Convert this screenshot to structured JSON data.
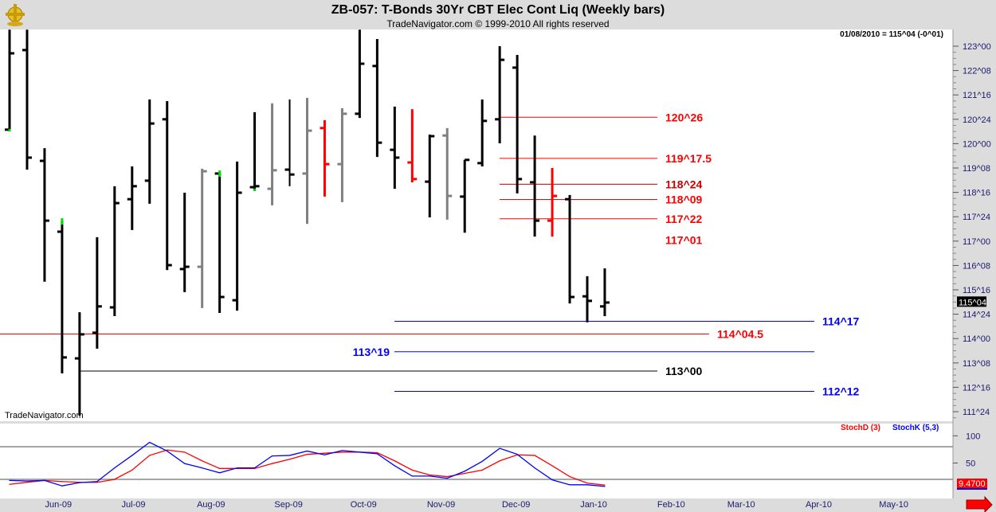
{
  "header": {
    "title": "ZB-057:  T-Bonds 30Yr CBT Elec Cont Liq  (Weekly bars)",
    "subtitle": "TradeNavigator.com © 1999-2010 All rights reserved",
    "quote": "01/08/2010 = 115^04 (-0^01)",
    "watermark": "TradeNavigator.com"
  },
  "colors": {
    "up": "#000000",
    "neutral": "#808080",
    "signal": "#ff0000",
    "mark": "#00dd00",
    "blue_level": "#0000ff",
    "red_level": "#ff0000",
    "stochD": "#ff0000",
    "stochK": "#0000ff"
  },
  "chart_data": [
    {
      "type": "ohlc",
      "title": "ZB-057:  T-Bonds 30Yr CBT Elec Cont Liq  (Weekly bars)",
      "y_axis": {
        "position": "right",
        "ylim": [
          111.5,
          123.5
        ],
        "tick_labels": [
          "123^00",
          "122^08",
          "121^16",
          "120^24",
          "120^00",
          "119^08",
          "118^16",
          "117^24",
          "117^00",
          "116^08",
          "115^16",
          "114^24",
          "114^00",
          "113^08",
          "112^16",
          "111^24"
        ],
        "tick_values": [
          123.0,
          122.25,
          121.5,
          120.75,
          120.0,
          119.25,
          118.5,
          117.75,
          117.0,
          116.25,
          115.5,
          114.75,
          114.0,
          113.25,
          112.5,
          111.75
        ],
        "last_price_label": "115^04",
        "last_price": 115.125
      },
      "bars": [
        {
          "date": "2009-05-15",
          "o": 120.43,
          "h": 123.51,
          "l": 120.38,
          "c": 122.78,
          "color": "up",
          "mark": "low"
        },
        {
          "date": "2009-05-22",
          "o": 122.88,
          "h": 123.51,
          "l": 119.2,
          "c": 119.57,
          "color": "up"
        },
        {
          "date": "2009-05-29",
          "o": 119.47,
          "h": 119.86,
          "l": 115.75,
          "c": 117.63,
          "color": "up"
        },
        {
          "date": "2009-06-05",
          "o": 117.29,
          "h": 117.63,
          "l": 112.93,
          "c": 113.42,
          "color": "up",
          "mark": "high"
        },
        {
          "date": "2009-06-12",
          "o": 113.39,
          "h": 114.81,
          "l": 111.63,
          "c": 114.13,
          "color": "up"
        },
        {
          "date": "2009-06-19",
          "o": 114.18,
          "h": 117.12,
          "l": 113.69,
          "c": 114.99,
          "color": "up"
        },
        {
          "date": "2009-06-26",
          "o": 114.96,
          "h": 118.69,
          "l": 114.69,
          "c": 118.17,
          "color": "up"
        },
        {
          "date": "2009-07-03",
          "o": 118.29,
          "h": 119.3,
          "l": 117.34,
          "c": 118.69,
          "color": "up"
        },
        {
          "date": "2009-07-10",
          "o": 118.86,
          "h": 121.36,
          "l": 118.15,
          "c": 120.62,
          "color": "up"
        },
        {
          "date": "2009-07-17",
          "o": 120.75,
          "h": 121.31,
          "l": 116.11,
          "c": 116.26,
          "color": "up"
        },
        {
          "date": "2009-07-24",
          "o": 116.14,
          "h": 118.49,
          "l": 115.43,
          "c": 116.21,
          "color": "up"
        },
        {
          "date": "2009-07-31",
          "o": 116.21,
          "h": 119.23,
          "l": 114.94,
          "c": 119.15,
          "color": "neutral"
        },
        {
          "date": "2009-08-07",
          "o": 119.08,
          "h": 119.1,
          "l": 114.79,
          "c": 115.28,
          "color": "up",
          "mark": "high"
        },
        {
          "date": "2009-08-14",
          "o": 115.18,
          "h": 119.45,
          "l": 114.86,
          "c": 118.49,
          "color": "up"
        },
        {
          "date": "2009-08-21",
          "o": 118.66,
          "h": 120.97,
          "l": 118.54,
          "c": 118.69,
          "color": "up",
          "mark": "low"
        },
        {
          "date": "2009-08-28",
          "o": 118.61,
          "h": 121.24,
          "l": 118.1,
          "c": 119.18,
          "color": "neutral"
        },
        {
          "date": "2009-09-04",
          "o": 119.2,
          "h": 121.36,
          "l": 118.69,
          "c": 119.05,
          "color": "up"
        },
        {
          "date": "2009-09-11",
          "o": 119.08,
          "h": 121.41,
          "l": 117.53,
          "c": 120.4,
          "color": "neutral"
        },
        {
          "date": "2009-09-18",
          "o": 120.48,
          "h": 120.72,
          "l": 118.37,
          "c": 119.37,
          "color": "signal"
        },
        {
          "date": "2009-09-25",
          "o": 119.37,
          "h": 121.09,
          "l": 118.2,
          "c": 120.92,
          "color": "neutral"
        },
        {
          "date": "2009-10-02",
          "o": 120.92,
          "h": 123.51,
          "l": 120.79,
          "c": 122.46,
          "color": "up"
        },
        {
          "date": "2009-10-09",
          "o": 122.39,
          "h": 123.22,
          "l": 119.59,
          "c": 120.03,
          "color": "up"
        },
        {
          "date": "2009-10-16",
          "o": 119.81,
          "h": 121.14,
          "l": 118.61,
          "c": 119.57,
          "color": "up"
        },
        {
          "date": "2009-10-23",
          "o": 119.42,
          "h": 121.06,
          "l": 118.81,
          "c": 118.91,
          "color": "signal"
        },
        {
          "date": "2009-10-30",
          "o": 118.83,
          "h": 120.28,
          "l": 117.73,
          "c": 120.23,
          "color": "up"
        },
        {
          "date": "2009-11-06",
          "o": 120.25,
          "h": 120.48,
          "l": 117.66,
          "c": 118.39,
          "color": "neutral"
        },
        {
          "date": "2009-11-13",
          "o": 118.37,
          "h": 119.5,
          "l": 117.26,
          "c": 119.5,
          "color": "up"
        },
        {
          "date": "2009-11-20",
          "o": 119.4,
          "h": 121.36,
          "l": 119.3,
          "c": 120.7,
          "color": "up"
        },
        {
          "date": "2009-11-27",
          "o": 120.75,
          "h": 123.0,
          "l": 120.01,
          "c": 122.58,
          "color": "up"
        },
        {
          "date": "2009-12-04",
          "o": 122.34,
          "h": 122.73,
          "l": 118.47,
          "c": 118.91,
          "color": "up"
        },
        {
          "date": "2009-12-11",
          "o": 118.81,
          "h": 120.25,
          "l": 117.14,
          "c": 117.63,
          "color": "up"
        },
        {
          "date": "2009-12-18",
          "o": 117.63,
          "h": 119.25,
          "l": 117.14,
          "c": 118.39,
          "color": "signal"
        },
        {
          "date": "2009-12-25",
          "o": 118.29,
          "h": 118.42,
          "l": 115.08,
          "c": 115.28,
          "color": "up"
        },
        {
          "date": "2010-01-01",
          "o": 115.3,
          "h": 115.92,
          "l": 114.5,
          "c": 115.16,
          "color": "up"
        },
        {
          "date": "2010-01-08",
          "o": 114.99,
          "h": 116.16,
          "l": 114.69,
          "c": 115.11,
          "color": "up"
        }
      ],
      "levels": [
        {
          "label": "120^26",
          "value": 120.8125,
          "color": "red_level",
          "line": true
        },
        {
          "label": "119^17.5",
          "value": 119.547,
          "color": "red_level",
          "line": true
        },
        {
          "label": "118^24",
          "value": 118.75,
          "color": "#cc0000",
          "line": true
        },
        {
          "label": "118^09",
          "value": 118.281,
          "color": "red_level",
          "line": true
        },
        {
          "label": "117^22",
          "value": 117.6875,
          "color": "red_level",
          "line": true
        },
        {
          "label": "117^01",
          "value": 117.031,
          "color": "red_level",
          "line": false
        },
        {
          "label": "114^17",
          "value": 114.531,
          "color": "blue_level",
          "line": true
        },
        {
          "label": "114^04.5",
          "value": 114.141,
          "color": "red_level",
          "line": true
        },
        {
          "label": "113^19",
          "value": 113.594,
          "color": "blue_level",
          "line": true
        },
        {
          "label": "113^00",
          "value": 113.0,
          "color": "#000000",
          "line": true
        },
        {
          "label": "112^12",
          "value": 112.375,
          "color": "blue_level",
          "line": true
        }
      ],
      "x_tick_labels": [
        {
          "label": "Jun-09",
          "date": "2009-06-01"
        },
        {
          "label": "Jul-09",
          "date": "2009-07-01"
        },
        {
          "label": "Aug-09",
          "date": "2009-08-01"
        },
        {
          "label": "Sep-09",
          "date": "2009-09-01"
        },
        {
          "label": "Oct-09",
          "date": "2009-10-01"
        },
        {
          "label": "Nov-09",
          "date": "2009-11-01"
        },
        {
          "label": "Dec-09",
          "date": "2009-12-01"
        },
        {
          "label": "Jan-10",
          "date": "2010-01-01"
        },
        {
          "label": "Feb-10",
          "date": "2010-02-01"
        },
        {
          "label": "Mar-10",
          "date": "2010-03-01"
        },
        {
          "label": "Apr-10",
          "date": "2010-04-01"
        },
        {
          "label": "May-10",
          "date": "2010-05-01"
        }
      ]
    },
    {
      "type": "line",
      "ylim": [
        0,
        100
      ],
      "tick_labels": [
        "100",
        "50"
      ],
      "reference_lines": [
        80,
        20
      ],
      "last_value_label": "9.4700",
      "series": [
        {
          "name": "StochD (3)",
          "color": "stochD",
          "values": [
            10.8,
            14.6,
            18,
            16,
            14.5,
            14.5,
            20,
            37,
            64,
            74,
            70,
            54,
            40,
            40,
            40,
            49,
            57,
            66,
            68,
            70,
            70,
            69,
            54,
            37,
            28,
            25,
            31,
            37,
            54,
            65,
            64,
            45,
            25,
            13,
            9.5
          ]
        },
        {
          "name": "StochK (5,3)",
          "color": "stochK",
          "values": [
            18,
            17,
            18,
            8,
            14,
            16,
            41,
            64,
            88,
            72,
            49,
            41,
            32,
            41,
            41,
            63,
            64,
            72,
            65,
            73,
            70,
            67,
            45,
            26,
            26,
            22,
            35,
            53,
            77,
            66,
            41,
            19,
            10,
            10,
            7
          ]
        }
      ]
    }
  ]
}
